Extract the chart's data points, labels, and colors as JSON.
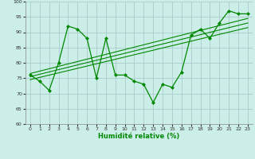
{
  "bg_color": "#cceee8",
  "grid_color": "#aacccc",
  "line_color": "#008800",
  "marker_color": "#008800",
  "xlabel": "Humidité relative (%)",
  "xlabel_color": "#008800",
  "xlim": [
    -0.5,
    23.5
  ],
  "ylim": [
    60,
    100
  ],
  "yticks": [
    60,
    65,
    70,
    75,
    80,
    85,
    90,
    95,
    100
  ],
  "xticks": [
    0,
    1,
    2,
    3,
    4,
    5,
    6,
    7,
    8,
    9,
    10,
    11,
    12,
    13,
    14,
    15,
    16,
    17,
    18,
    19,
    20,
    21,
    22,
    23
  ],
  "series1_x": [
    0,
    1,
    2,
    3,
    4,
    5,
    6,
    7,
    8,
    9,
    10,
    11,
    12,
    13,
    14,
    15,
    16,
    17,
    18,
    19,
    20,
    21,
    22,
    23
  ],
  "series1_y": [
    76,
    74,
    71,
    80,
    92,
    91,
    88,
    75,
    88,
    76,
    76,
    74,
    73,
    67,
    73,
    72,
    77,
    89,
    91,
    88,
    93,
    97,
    96,
    96
  ],
  "trend1_x": [
    0,
    23
  ],
  "trend1_y": [
    74.5,
    91.5
  ],
  "trend2_x": [
    0,
    23
  ],
  "trend2_y": [
    76.5,
    94.5
  ],
  "trend3_x": [
    0,
    23
  ],
  "trend3_y": [
    75.5,
    93.0
  ]
}
